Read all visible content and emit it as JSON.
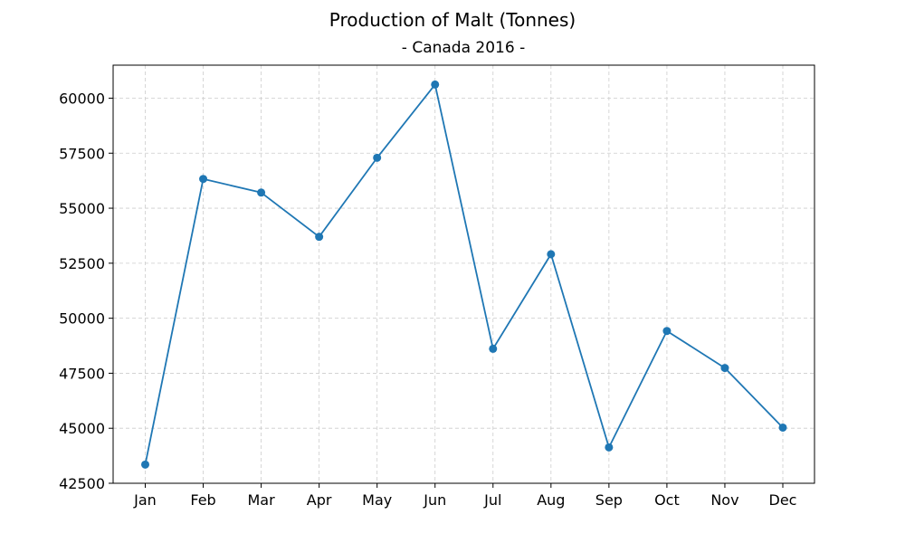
{
  "chart_data": {
    "type": "line",
    "title": "Production of Malt (Tonnes)",
    "subtitle": "- Canada 2016 -",
    "xlabel": "",
    "ylabel": "",
    "categories": [
      "Jan",
      "Feb",
      "Mar",
      "Apr",
      "May",
      "Jun",
      "Jul",
      "Aug",
      "Sep",
      "Oct",
      "Nov",
      "Dec"
    ],
    "series": [
      {
        "values": [
          43350,
          56330,
          55710,
          53700,
          57290,
          60620,
          48610,
          52910,
          44130,
          49420,
          47740,
          45030
        ],
        "color": "#1f77b4",
        "marker": "circle"
      }
    ],
    "ylim": [
      42500,
      61500
    ],
    "yticks": [
      42500,
      45000,
      47500,
      50000,
      52500,
      55000,
      57500,
      60000
    ],
    "ytick_labels": [
      "42500",
      "45000",
      "47500",
      "50000",
      "52500",
      "55000",
      "57500",
      "60000"
    ],
    "grid": true,
    "grid_style": "dashed",
    "legend": "none"
  }
}
